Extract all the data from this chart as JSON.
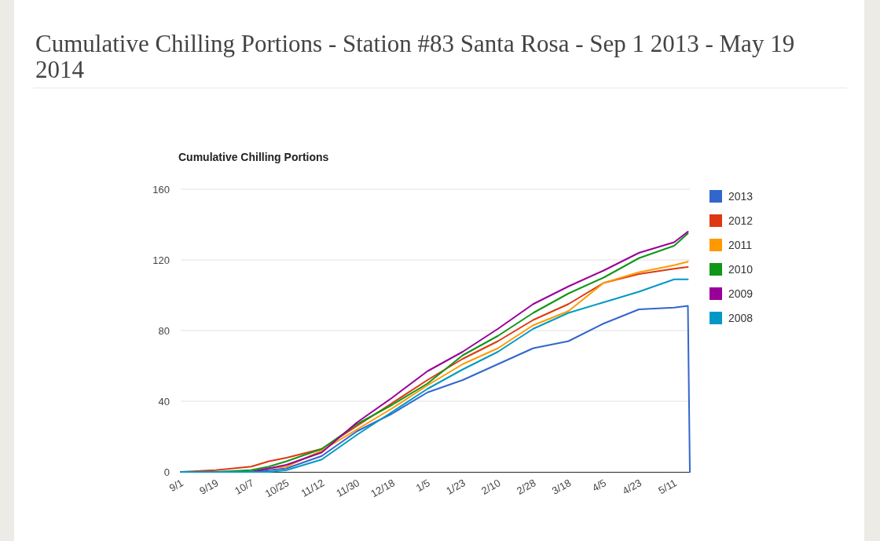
{
  "chart_data": {
    "type": "line",
    "title": "Cumulative Chilling Portions - Station #83 Santa Rosa - Sep 1 2013 - May 19 2014",
    "subtitle": "Cumulative Chilling Portions",
    "x": [
      "2013-09-01",
      "2013-09-19",
      "2013-10-07",
      "2013-10-16",
      "2013-10-25",
      "2013-11-12",
      "2013-11-30",
      "2013-12-18",
      "2014-01-05",
      "2014-01-23",
      "2014-02-10",
      "2014-02-28",
      "2014-03-18",
      "2014-04-05",
      "2014-04-23",
      "2014-05-11",
      "2014-05-18",
      "2014-05-19"
    ],
    "series": [
      {
        "name": "2013",
        "color": "#3366cc",
        "values": [
          0,
          0,
          0,
          1,
          2,
          9,
          23,
          33,
          45,
          52,
          61,
          70,
          74,
          84,
          92,
          93,
          94,
          0
        ]
      },
      {
        "name": "2012",
        "color": "#dc3912",
        "values": [
          0,
          1,
          3,
          6,
          8,
          13,
          26,
          39,
          52,
          64,
          74,
          86,
          95,
          107,
          112,
          115,
          116,
          null
        ]
      },
      {
        "name": "2011",
        "color": "#ff9900",
        "values": [
          null,
          null,
          1,
          2,
          3,
          12,
          24,
          36,
          49,
          61,
          70,
          83,
          91,
          107,
          113,
          117,
          119,
          null
        ]
      },
      {
        "name": "2010",
        "color": "#109618",
        "values": [
          0,
          0,
          1,
          3,
          6,
          13,
          27,
          38,
          50,
          66,
          77,
          90,
          101,
          110,
          121,
          128,
          135,
          null
        ]
      },
      {
        "name": "2009",
        "color": "#990099",
        "values": [
          0,
          0,
          0,
          2,
          4,
          11,
          28,
          42,
          57,
          68,
          81,
          95,
          105,
          114,
          124,
          130,
          136,
          null
        ]
      },
      {
        "name": "2008",
        "color": "#0099c6",
        "values": [
          0,
          0,
          0,
          0,
          1,
          7,
          21,
          34,
          47,
          58,
          68,
          81,
          90,
          96,
          102,
          109,
          109,
          null
        ]
      }
    ],
    "xlim": [
      "2013-09-01",
      "2014-05-19"
    ],
    "xticks": [
      {
        "value": "2013-09-01",
        "label": "9/1"
      },
      {
        "value": "2013-09-19",
        "label": "9/19"
      },
      {
        "value": "2013-10-07",
        "label": "10/7"
      },
      {
        "value": "2013-10-25",
        "label": "10/25"
      },
      {
        "value": "2013-11-12",
        "label": "11/12"
      },
      {
        "value": "2013-11-30",
        "label": "11/30"
      },
      {
        "value": "2013-12-18",
        "label": "12/18"
      },
      {
        "value": "2014-01-05",
        "label": "1/5"
      },
      {
        "value": "2014-01-23",
        "label": "1/23"
      },
      {
        "value": "2014-02-10",
        "label": "2/10"
      },
      {
        "value": "2014-02-28",
        "label": "2/28"
      },
      {
        "value": "2014-03-18",
        "label": "3/18"
      },
      {
        "value": "2014-04-05",
        "label": "4/5"
      },
      {
        "value": "2014-04-23",
        "label": "4/23"
      },
      {
        "value": "2014-05-11",
        "label": "5/11"
      }
    ],
    "ylim": [
      0,
      160
    ],
    "yticks": [
      0,
      40,
      80,
      120,
      160
    ],
    "grid": "y",
    "legend": "right",
    "marker": "none",
    "line_style": "solid"
  }
}
